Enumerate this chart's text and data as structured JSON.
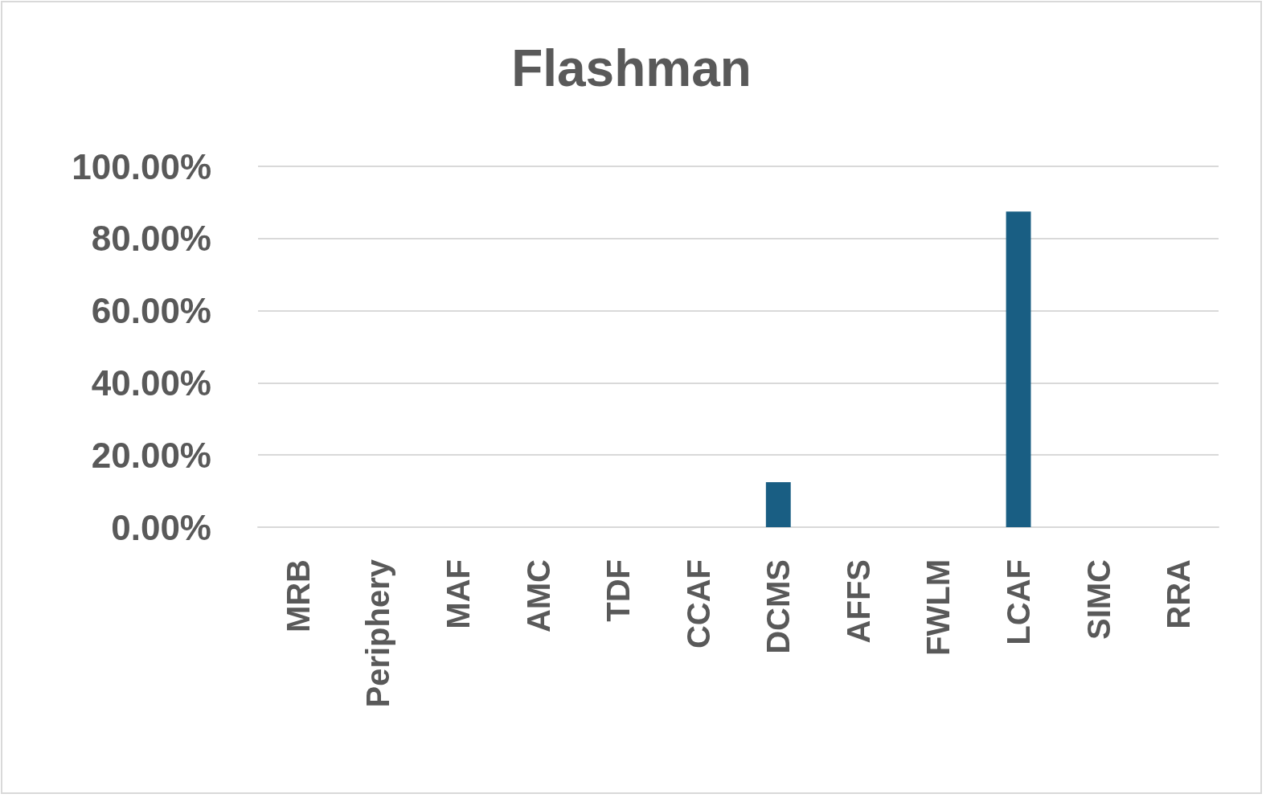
{
  "chart_data": {
    "type": "bar",
    "title": "Flashman",
    "categories": [
      "MRB",
      "Periphery",
      "MAF",
      "AMC",
      "TDF",
      "CCAF",
      "DCMS",
      "AFFS",
      "FWLM",
      "LCAF",
      "SIMC",
      "RRA"
    ],
    "values": [
      0,
      0,
      0,
      0,
      0,
      0,
      12.5,
      0,
      0,
      87.5,
      0,
      0
    ],
    "color": "#195e83",
    "ylim": [
      0,
      100
    ],
    "yticks": [
      {
        "value": 0,
        "label": "0.00%"
      },
      {
        "value": 20,
        "label": "20.00%"
      },
      {
        "value": 40,
        "label": "40.00%"
      },
      {
        "value": 60,
        "label": "60.00%"
      },
      {
        "value": 80,
        "label": "80.00%"
      },
      {
        "value": 100,
        "label": "100.00%"
      }
    ],
    "grid": "y"
  }
}
